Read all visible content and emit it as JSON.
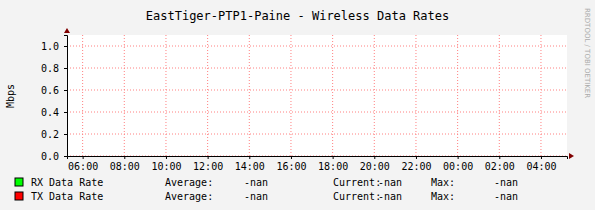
{
  "chart_data": {
    "type": "line",
    "title": "EastTiger-PTP1-Paine - Wireless Data Rates",
    "y_label": "Mbps",
    "watermark": "RRDTOOL / TOBI OETIKER",
    "x": [],
    "xlim": [
      5.25,
      29.25
    ],
    "xticks": [
      {
        "value": 6,
        "label": "06:00"
      },
      {
        "value": 8,
        "label": "08:00"
      },
      {
        "value": 10,
        "label": "10:00"
      },
      {
        "value": 12,
        "label": "12:00"
      },
      {
        "value": 14,
        "label": "14:00"
      },
      {
        "value": 16,
        "label": "16:00"
      },
      {
        "value": 18,
        "label": "18:00"
      },
      {
        "value": 20,
        "label": "20:00"
      },
      {
        "value": 22,
        "label": "22:00"
      },
      {
        "value": 24,
        "label": "00:00"
      },
      {
        "value": 26,
        "label": "02:00"
      },
      {
        "value": 28,
        "label": "04:00"
      }
    ],
    "ylim": [
      0,
      1.1
    ],
    "yticks": [
      {
        "value": 0,
        "label": "0.0"
      },
      {
        "value": 0.2,
        "label": "0.2"
      },
      {
        "value": 0.4,
        "label": "0.4"
      },
      {
        "value": 0.6,
        "label": "0.6"
      },
      {
        "value": 0.8,
        "label": "0.8"
      },
      {
        "value": 1,
        "label": "1.0"
      }
    ],
    "grid": true,
    "stat_labels": [
      "Average:",
      "Current:",
      "Max:"
    ],
    "series": [
      {
        "name": "RX Data Rate",
        "color": "#00ff00",
        "values": [],
        "stats": [
          "-nan",
          "-nan",
          "-nan"
        ]
      },
      {
        "name": "TX Data Rate",
        "color": "#ff0000",
        "values": [],
        "stats": [
          "-nan",
          "-nan",
          "-nan"
        ]
      }
    ]
  }
}
